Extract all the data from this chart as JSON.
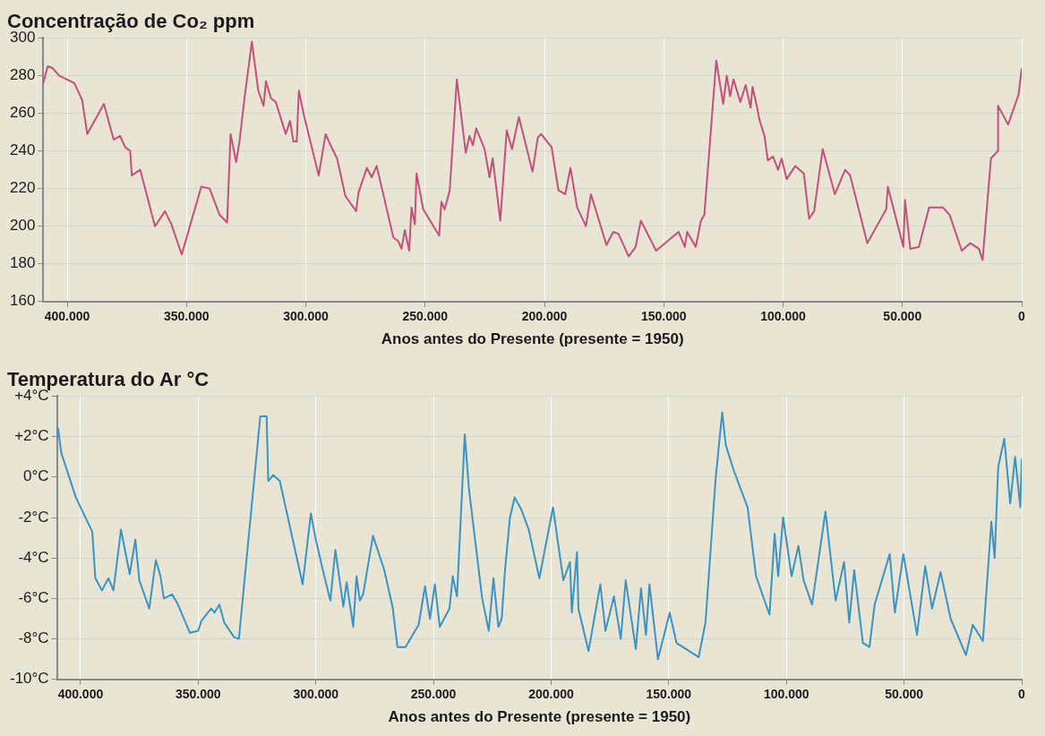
{
  "chart_data": [
    {
      "type": "line",
      "title": "Concentração de Co₂ ppm",
      "xlabel": "Anos antes do Presente (presente = 1950)",
      "xlim": [
        410000,
        0
      ],
      "xticks": [
        {
          "value": 400000,
          "label": "400.000"
        },
        {
          "value": 350000,
          "label": "350.000"
        },
        {
          "value": 300000,
          "label": "300.000"
        },
        {
          "value": 250000,
          "label": "250.000"
        },
        {
          "value": 200000,
          "label": "200.000"
        },
        {
          "value": 150000,
          "label": "150.000"
        },
        {
          "value": 100000,
          "label": "100.000"
        },
        {
          "value": 50000,
          "label": "50.000"
        },
        0
      ],
      "ylim": [
        160,
        300
      ],
      "yticks": [
        160,
        180,
        200,
        220,
        240,
        260,
        280,
        300
      ],
      "grid": true,
      "legend": false,
      "marker": "none",
      "series": [
        {
          "color": "#c2517a",
          "x": [
            410000,
            408200,
            406100,
            403400,
            397000,
            393700,
            391600,
            384600,
            380500,
            377800,
            375700,
            373600,
            372900,
            369400,
            363200,
            359000,
            356300,
            352000,
            343800,
            340300,
            336100,
            333000,
            331500,
            329200,
            327800,
            325700,
            322600,
            319900,
            317700,
            316700,
            314600,
            312600,
            308400,
            306600,
            305200,
            303800,
            302900,
            300800,
            294600,
            291700,
            289600,
            286900,
            283400,
            278900,
            277900,
            274400,
            272400,
            270300,
            263300,
            261200,
            259900,
            258500,
            256700,
            255700,
            254300,
            253600,
            250800,
            244100,
            243200,
            241800,
            239700,
            236700,
            233000,
            231400,
            230000,
            228600,
            225100,
            223000,
            221700,
            218500,
            215800,
            213600,
            210700,
            205000,
            202800,
            201400,
            197000,
            194100,
            191300,
            189100,
            186300,
            182600,
            180500,
            174000,
            171200,
            169000,
            164700,
            161800,
            159600,
            153200,
            143800,
            141200,
            140200,
            136600,
            134400,
            133000,
            128000,
            125100,
            123600,
            122200,
            120800,
            117900,
            115700,
            113600,
            112800,
            110700,
            110000,
            107800,
            106400,
            104200,
            102100,
            100600,
            98500,
            94900,
            91300,
            89100,
            87000,
            83400,
            78300,
            74000,
            71900,
            64700,
            56800,
            56100,
            49600,
            48900,
            46700,
            43100,
            38800,
            33000,
            30200,
            25100,
            21500,
            17900,
            16400,
            12900,
            10000,
            9900,
            5700,
            1300,
            0
          ],
          "values": [
            276,
            285,
            284,
            280,
            276,
            267,
            249,
            265,
            246,
            248,
            242,
            240,
            227,
            230,
            200,
            208,
            201,
            185,
            221,
            220,
            206,
            202,
            249,
            234,
            245,
            268,
            298,
            272,
            264,
            277,
            268,
            266,
            249,
            256,
            245,
            245,
            272,
            259,
            227,
            249,
            243,
            236,
            216,
            208,
            218,
            231,
            226,
            232,
            194,
            192,
            188,
            198,
            187,
            210,
            201,
            228,
            209,
            195,
            213,
            209,
            219,
            278,
            239,
            248,
            243,
            252,
            241,
            226,
            236,
            203,
            251,
            241,
            258,
            229,
            247,
            249,
            242,
            219,
            217,
            231,
            210,
            200,
            217,
            190,
            197,
            196,
            184,
            189,
            203,
            187,
            197,
            189,
            197,
            189,
            203,
            206,
            288,
            265,
            280,
            269,
            278,
            266,
            275,
            263,
            274,
            262,
            257,
            248,
            235,
            237,
            230,
            236,
            225,
            232,
            228,
            204,
            208,
            241,
            217,
            230,
            227,
            191,
            209,
            221,
            189,
            214,
            188,
            189,
            210,
            210,
            206,
            187,
            191,
            188,
            182,
            236,
            240,
            264,
            254,
            270,
            284
          ]
        }
      ]
    },
    {
      "type": "line",
      "title": "Temperatura do Ar °C",
      "xlabel": "Anos antes do Presente (presente = 1950)",
      "xlim": [
        410000,
        0
      ],
      "xticks": [
        {
          "value": 400000,
          "label": "400.000"
        },
        {
          "value": 350000,
          "label": "350.000"
        },
        {
          "value": 300000,
          "label": "300.000"
        },
        {
          "value": 250000,
          "label": "250.000"
        },
        {
          "value": 200000,
          "label": "200.000"
        },
        {
          "value": 150000,
          "label": "150.000"
        },
        {
          "value": 100000,
          "label": "100.000"
        },
        {
          "value": 50000,
          "label": "50.000"
        },
        0
      ],
      "ylim": [
        -10,
        4
      ],
      "yticks": [
        {
          "value": -10,
          "label": "-10°C"
        },
        {
          "value": -8,
          "label": "-8°C"
        },
        {
          "value": -6,
          "label": "-6°C"
        },
        {
          "value": -4,
          "label": "-4°C"
        },
        {
          "value": -2,
          "label": "-2°C"
        },
        {
          "value": 0,
          "label": "0°C"
        },
        {
          "value": 2,
          "label": "+2°C"
        },
        {
          "value": 4,
          "label": "+4°C"
        }
      ],
      "grid": true,
      "legend": false,
      "marker": "none",
      "series": [
        {
          "color": "#3a93c3",
          "x": [
            410000,
            409500,
            408200,
            402000,
            395000,
            393700,
            390900,
            388100,
            386000,
            382800,
            379100,
            376700,
            375000,
            370800,
            368000,
            366000,
            364600,
            361100,
            359000,
            353500,
            350000,
            348600,
            344500,
            343100,
            341000,
            338900,
            334800,
            332700,
            323600,
            320900,
            320200,
            318100,
            315300,
            305600,
            302100,
            300000,
            296600,
            293800,
            291700,
            288300,
            286900,
            284100,
            282700,
            281300,
            279900,
            275700,
            270900,
            267400,
            265300,
            261900,
            256300,
            253600,
            251500,
            249400,
            247300,
            243200,
            241800,
            240000,
            236700,
            234900,
            229300,
            226500,
            224500,
            222400,
            221000,
            219600,
            217500,
            215500,
            212700,
            209500,
            205000,
            199200,
            194800,
            192000,
            191200,
            189000,
            188400,
            184100,
            179100,
            176900,
            173300,
            170400,
            168300,
            164000,
            161800,
            159700,
            158200,
            154600,
            149600,
            146700,
            137300,
            134400,
            130100,
            127300,
            125800,
            122300,
            116500,
            112900,
            107200,
            105000,
            103500,
            101400,
            97800,
            94900,
            92700,
            89100,
            83400,
            79100,
            75500,
            73300,
            71200,
            67500,
            64700,
            62500,
            56100,
            53900,
            50300,
            44500,
            41000,
            38100,
            34500,
            30200,
            23700,
            20800,
            16500,
            12900,
            11500,
            10000,
            7400,
            4900,
            2800,
            600,
            0
          ],
          "values": [
            2,
            2.4,
            1.2,
            -1,
            -2.7,
            -5,
            -5.6,
            -5,
            -5.6,
            -2.6,
            -4.8,
            -3.1,
            -5.1,
            -6.5,
            -4.1,
            -4.9,
            -6,
            -5.8,
            -6.2,
            -7.7,
            -7.6,
            -7.1,
            -6.5,
            -6.7,
            -6.3,
            -7.2,
            -7.9,
            -8,
            3,
            3,
            -0.2,
            0.1,
            -0.2,
            -5.3,
            -1.8,
            -3.1,
            -4.8,
            -6.1,
            -3.6,
            -6.4,
            -5.2,
            -7.4,
            -4.9,
            -6.1,
            -5.8,
            -2.9,
            -4.6,
            -6.4,
            -8.4,
            -8.4,
            -7.3,
            -5.4,
            -7,
            -5.3,
            -7.4,
            -6.5,
            -4.9,
            -5.9,
            2.1,
            -0.6,
            -6,
            -7.6,
            -5,
            -7.4,
            -7,
            -4.6,
            -2,
            -1,
            -1.6,
            -2.6,
            -5,
            -1.5,
            -5.1,
            -4.2,
            -6.7,
            -3.7,
            -6.5,
            -8.6,
            -5.3,
            -7.6,
            -5.9,
            -8,
            -5.1,
            -8.5,
            -5.5,
            -7.8,
            -5.3,
            -9,
            -6.7,
            -8.2,
            -8.9,
            -7.2,
            -0.1,
            3.2,
            1.6,
            0.3,
            -1.5,
            -4.9,
            -6.8,
            -2.8,
            -4.9,
            -2,
            -4.9,
            -3.4,
            -5.1,
            -6.3,
            -1.7,
            -6.1,
            -4.2,
            -7.2,
            -4.6,
            -8.2,
            -8.4,
            -6.3,
            -3.8,
            -6.7,
            -3.8,
            -7.8,
            -4.4,
            -6.5,
            -4.7,
            -7,
            -8.8,
            -7.3,
            -8.1,
            -2.2,
            -4,
            0.5,
            1.9,
            -1.3,
            1,
            -1.5,
            0.9
          ]
        }
      ]
    }
  ]
}
